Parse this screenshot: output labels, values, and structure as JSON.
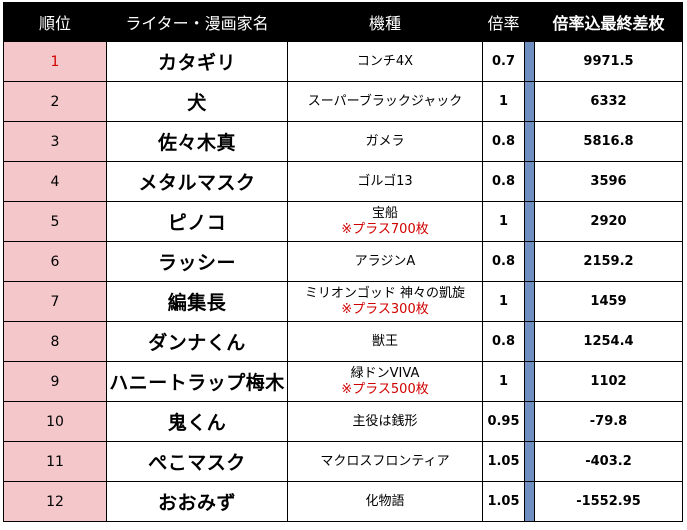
{
  "headers": {
    "rank": "順位",
    "name": "ライター・漫画家名",
    "model": "機種",
    "rate": "倍率",
    "total": "倍率込最終差枚"
  },
  "rows": [
    {
      "rank": "1",
      "name": "カタギリ",
      "model": "コンチ4X",
      "bonus": "",
      "rate": "0.7",
      "total": "9971.5"
    },
    {
      "rank": "2",
      "name": "犬",
      "model": "スーパーブラックジャック",
      "bonus": "",
      "rate": "1",
      "total": "6332"
    },
    {
      "rank": "3",
      "name": "佐々木真",
      "model": "ガメラ",
      "bonus": "",
      "rate": "0.8",
      "total": "5816.8"
    },
    {
      "rank": "4",
      "name": "メタルマスク",
      "model": "ゴルゴ13",
      "bonus": "",
      "rate": "0.8",
      "total": "3596"
    },
    {
      "rank": "5",
      "name": "ピノコ",
      "model": "宝船",
      "bonus": "※プラス700枚",
      "rate": "1",
      "total": "2920"
    },
    {
      "rank": "6",
      "name": "ラッシー",
      "model": "アラジンA",
      "bonus": "",
      "rate": "0.8",
      "total": "2159.2"
    },
    {
      "rank": "7",
      "name": "編集長",
      "model": "ミリオンゴッド 神々の凱旋",
      "bonus": "※プラス300枚",
      "rate": "1",
      "total": "1459"
    },
    {
      "rank": "8",
      "name": "ダンナくん",
      "model": "獣王",
      "bonus": "",
      "rate": "0.8",
      "total": "1254.4"
    },
    {
      "rank": "9",
      "name": "ハニートラップ梅木",
      "model": "緑ドンVIVA",
      "bonus": "※プラス500枚",
      "rate": "1",
      "total": "1102"
    },
    {
      "rank": "10",
      "name": "鬼くん",
      "model": "主役は銭形",
      "bonus": "",
      "rate": "0.95",
      "total": "-79.8"
    },
    {
      "rank": "11",
      "name": "ぺこマスク",
      "model": "マクロスフロンティア",
      "bonus": "",
      "rate": "1.05",
      "total": "-403.2"
    },
    {
      "rank": "12",
      "name": "おおみず",
      "model": "化物語",
      "bonus": "",
      "rate": "1.05",
      "total": "-1552.95"
    }
  ],
  "colors": {
    "header_bg": "#000000",
    "rank_bg": "#f4c7ca",
    "first_rank_text": "#d00000",
    "bonus_text": "#d00000",
    "divider_bar": "#6e8fbf"
  }
}
